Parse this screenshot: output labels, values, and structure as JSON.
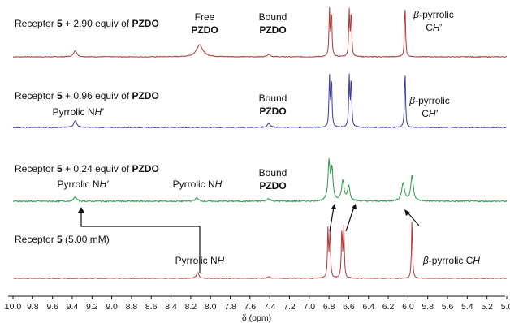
{
  "chart_data": {
    "type": "line",
    "title": "",
    "xlabel": "δ (ppm)",
    "ylabel": "",
    "x_reversed": true,
    "xlim": [
      10.0,
      5.0
    ],
    "x_ticks": [
      "10.0",
      "9.8",
      "9.6",
      "9.4",
      "9.2",
      "9.0",
      "8.8",
      "8.6",
      "8.4",
      "8.2",
      "8.0",
      "7.8",
      "7.6",
      "7.4",
      "7.2",
      "7.0",
      "6.8",
      "6.6",
      "6.4",
      "6.2",
      "6.0",
      "5.8",
      "5.6",
      "5.4",
      "5.2",
      "5.0"
    ],
    "grid": false,
    "series": [
      {
        "color": "#b03a3a",
        "peaks": [
          {
            "ppm": 9.37,
            "height": 0.12,
            "width": 0.018
          },
          {
            "ppm": 8.11,
            "height": 0.22,
            "width": 0.04
          },
          {
            "ppm": 7.41,
            "height": 0.05,
            "width": 0.018
          },
          {
            "ppm": 6.795,
            "height": 0.85,
            "width": 0.006
          },
          {
            "ppm": 6.775,
            "height": 0.85,
            "width": 0.006
          },
          {
            "ppm": 6.595,
            "height": 0.85,
            "width": 0.006
          },
          {
            "ppm": 6.575,
            "height": 0.85,
            "width": 0.006
          },
          {
            "ppm": 6.03,
            "height": 1.0,
            "width": 0.006
          }
        ],
        "noise": 0.015
      },
      {
        "color": "#3b3b9e",
        "peaks": [
          {
            "ppm": 9.37,
            "height": 0.12,
            "width": 0.018
          },
          {
            "ppm": 7.41,
            "height": 0.07,
            "width": 0.018
          },
          {
            "ppm": 6.795,
            "height": 0.85,
            "width": 0.006
          },
          {
            "ppm": 6.775,
            "height": 0.85,
            "width": 0.006
          },
          {
            "ppm": 6.595,
            "height": 0.85,
            "width": 0.006
          },
          {
            "ppm": 6.575,
            "height": 0.85,
            "width": 0.006
          },
          {
            "ppm": 6.03,
            "height": 1.0,
            "width": 0.006
          }
        ],
        "noise": 0.015
      },
      {
        "color": "#2e9a4a",
        "peaks": [
          {
            "ppm": 9.37,
            "height": 0.1,
            "width": 0.018
          },
          {
            "ppm": 8.14,
            "height": 0.08,
            "width": 0.018
          },
          {
            "ppm": 7.41,
            "height": 0.07,
            "width": 0.018
          },
          {
            "ppm": 6.8,
            "height": 0.9,
            "width": 0.012
          },
          {
            "ppm": 6.77,
            "height": 0.75,
            "width": 0.012
          },
          {
            "ppm": 6.66,
            "height": 0.48,
            "width": 0.015
          },
          {
            "ppm": 6.6,
            "height": 0.35,
            "width": 0.015
          },
          {
            "ppm": 6.05,
            "height": 0.42,
            "width": 0.018
          },
          {
            "ppm": 5.96,
            "height": 0.6,
            "width": 0.015
          }
        ],
        "noise": 0.03
      },
      {
        "color": "#b03a3a",
        "peaks": [
          {
            "ppm": 8.13,
            "height": 0.1,
            "width": 0.015
          },
          {
            "ppm": 7.41,
            "height": 0.03,
            "width": 0.015
          },
          {
            "ppm": 6.81,
            "height": 0.85,
            "width": 0.006
          },
          {
            "ppm": 6.79,
            "height": 0.85,
            "width": 0.006
          },
          {
            "ppm": 6.67,
            "height": 0.85,
            "width": 0.006
          },
          {
            "ppm": 6.65,
            "height": 0.85,
            "width": 0.006
          },
          {
            "ppm": 5.96,
            "height": 1.0,
            "width": 0.006
          }
        ],
        "noise": 0.012
      }
    ],
    "annotations": {
      "t1": "Receptor ",
      "t1b": "5",
      "t1c": " + 2.90 equiv of ",
      "t1d": "PZDO",
      "t2": "Receptor ",
      "t2b": "5",
      "t2c": " + 0.96 equiv of ",
      "t2d": "PZDO",
      "t3": "Receptor ",
      "t3b": "5",
      "t3c": " + 0.24 equiv of ",
      "t3d": "PZDO",
      "t4": "Receptor ",
      "t4b": "5",
      "t4c": " (5.00 mM)",
      "free": "Free",
      "pzdo": "PZDO",
      "bound": "Bound",
      "beta": "β",
      "pyrrolic": "-pyrrolic",
      "ch": "C",
      "chp": "H′",
      "chn": "H",
      "nhLabel": "Pyrrolic N",
      "nhp": "H′",
      "nh": "H",
      "betaCH": "-pyrrolic C"
    }
  }
}
